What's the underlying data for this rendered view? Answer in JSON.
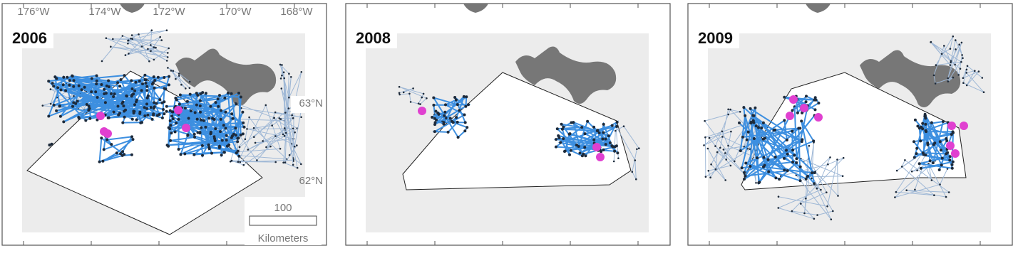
{
  "panels": [
    {
      "label": "2006"
    },
    {
      "label": "2008"
    },
    {
      "label": "2009"
    }
  ],
  "longitude_labels": [
    "176°W",
    "174°W",
    "172°W",
    "170°W",
    "168°W"
  ],
  "latitude_labels": [
    "63°N",
    "62°N"
  ],
  "scale_bar": {
    "distance": "100",
    "unit": "Kilometers"
  }
}
